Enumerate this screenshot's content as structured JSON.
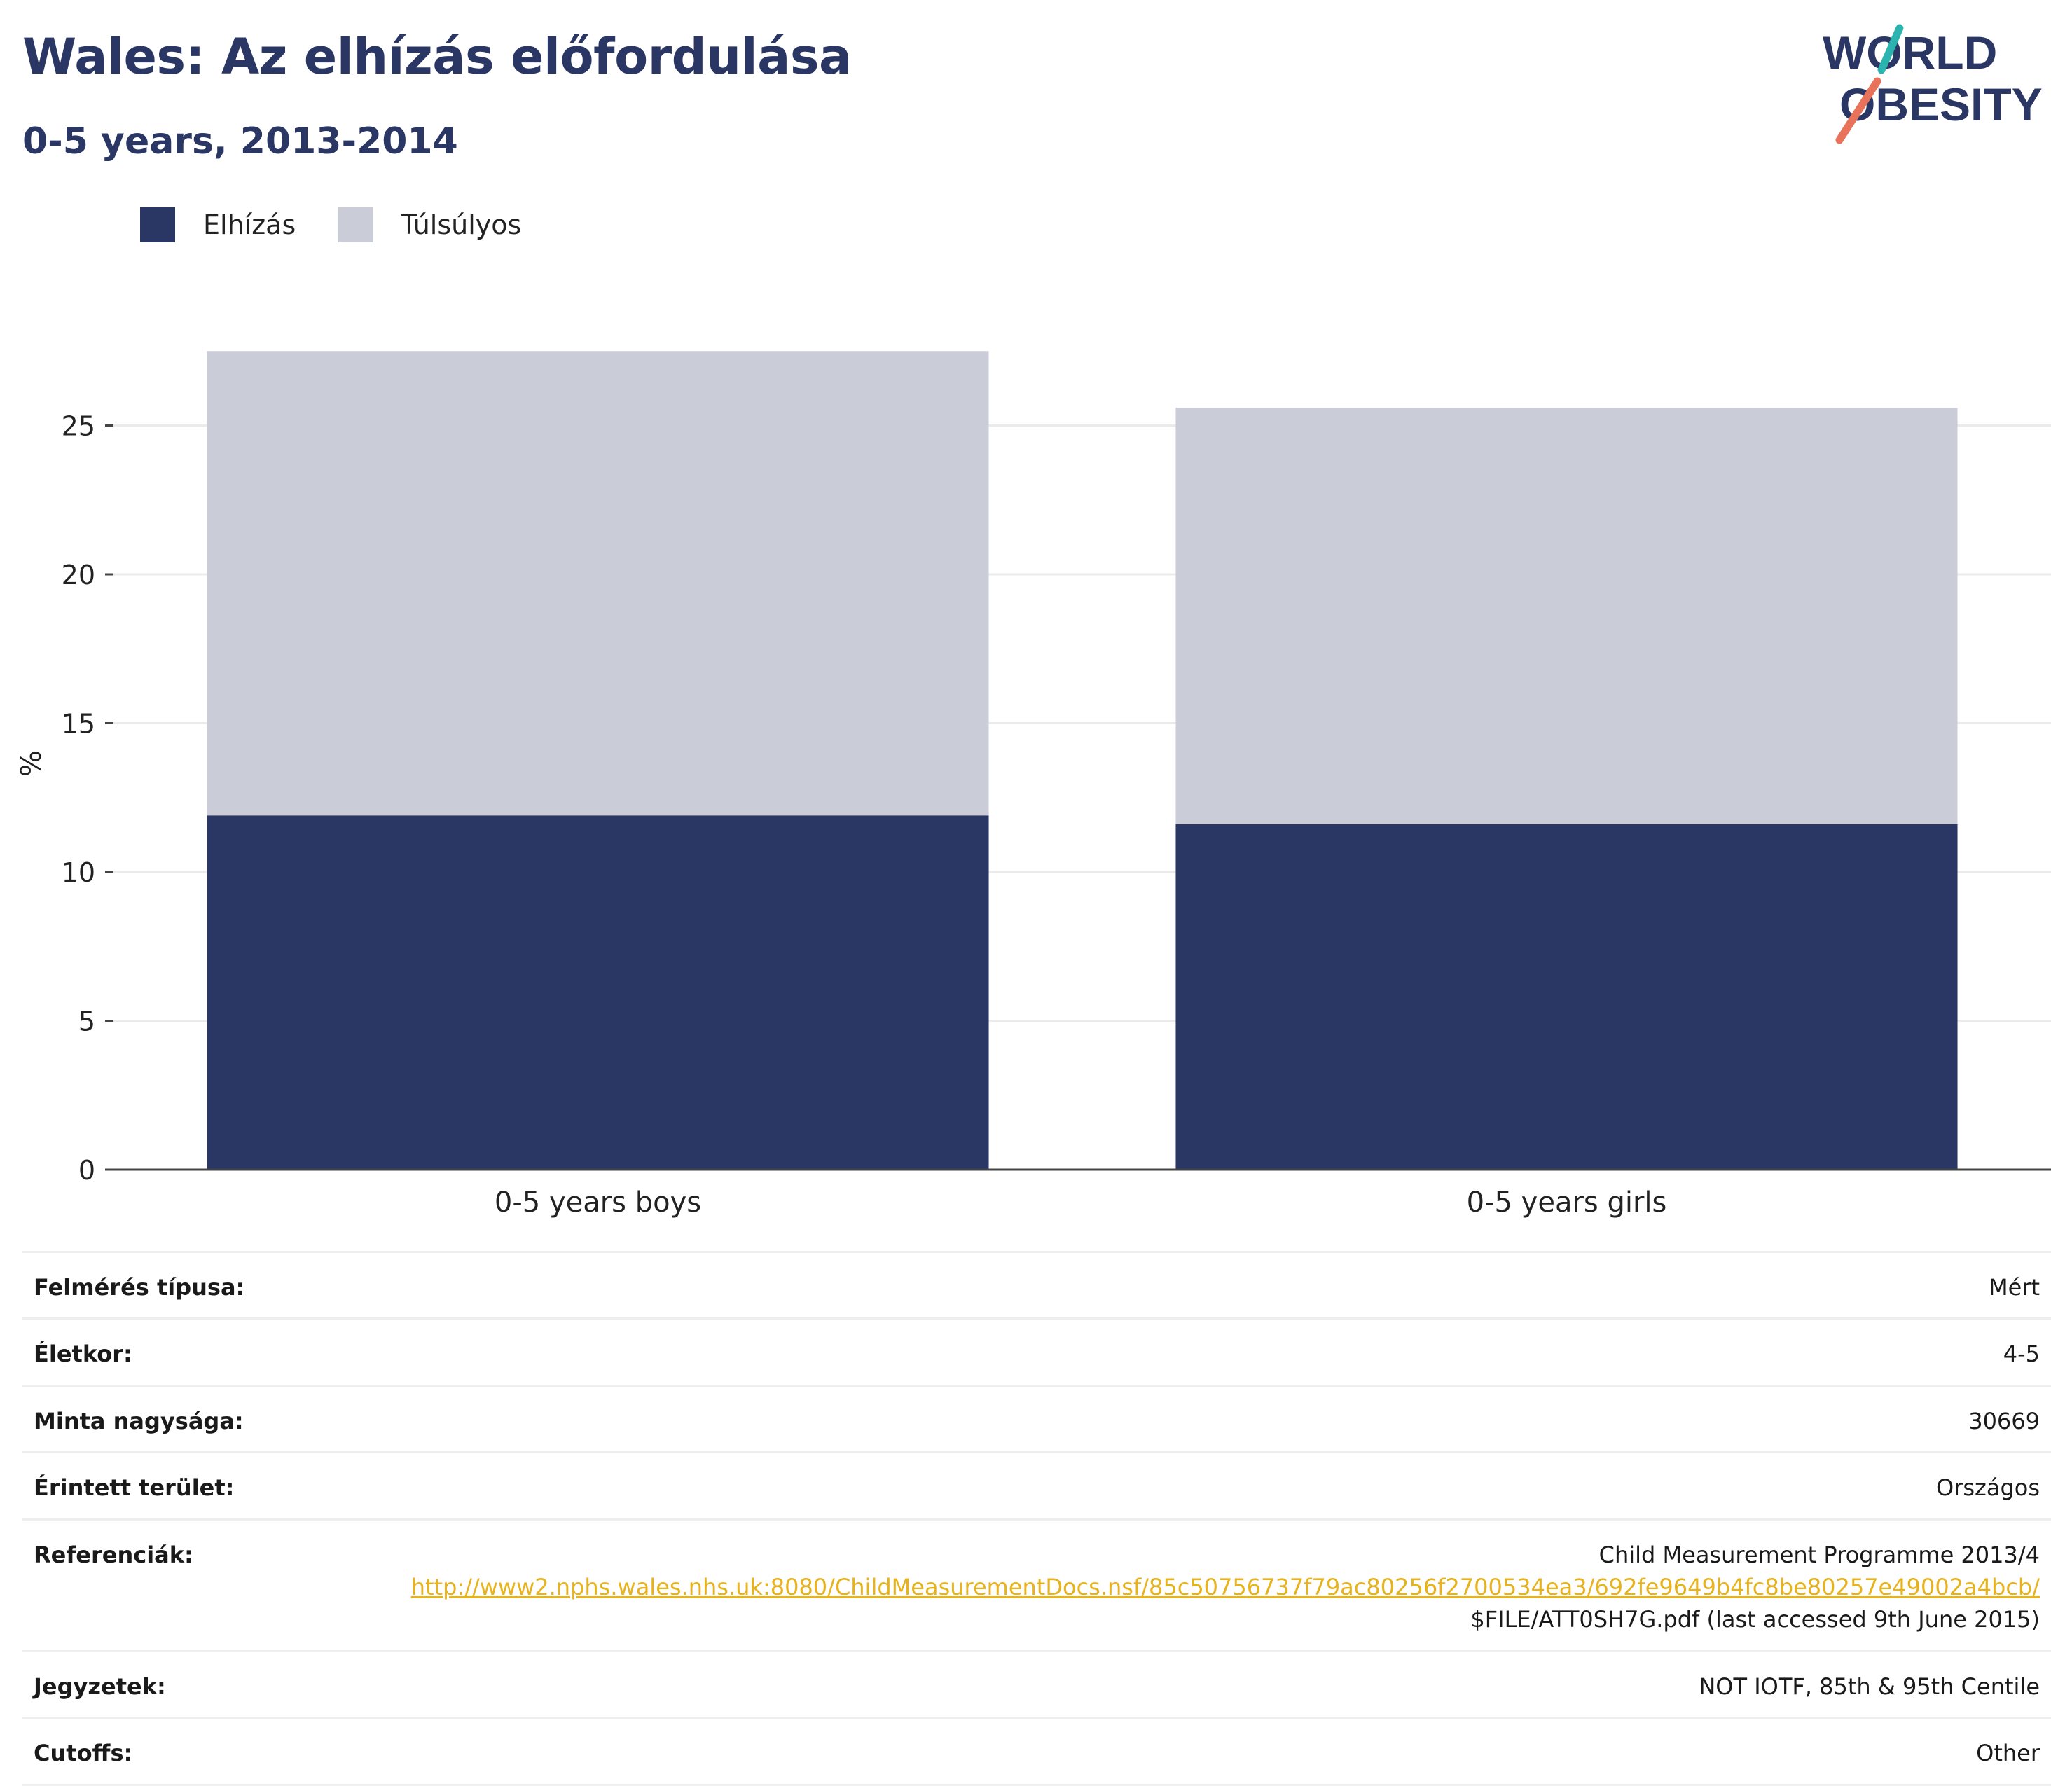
{
  "title": "Wales: Az elhízás előfordulása",
  "subtitle": "0-5 years, 2013-2014",
  "logo": {
    "line1": "WORLD",
    "line2": "OBESITY"
  },
  "colors": {
    "obesity": "#2a3663",
    "overweight": "#cacdd8",
    "title": "#2a3663",
    "link": "#e8b21b",
    "logo_teal": "#2bb3b0",
    "logo_coral": "#e8735a"
  },
  "chart_data": {
    "type": "bar",
    "stacked": true,
    "categories": [
      "0-5 years boys",
      "0-5 years girls"
    ],
    "series": [
      {
        "name": "Elhízás",
        "values": [
          11.9,
          11.6
        ],
        "color": "#2a3663"
      },
      {
        "name": "Túlsúlyos",
        "values": [
          15.6,
          14.0
        ],
        "color": "#cacdd8"
      }
    ],
    "ylabel": "%",
    "xlabel": "",
    "ylim": [
      0,
      28
    ],
    "yticks": [
      0,
      5,
      10,
      15,
      20,
      25
    ],
    "grid": true,
    "legend_position": "top-left"
  },
  "info": {
    "survey_type": {
      "label": "Felmérés típusa:",
      "value": "Mért"
    },
    "age": {
      "label": "Életkor:",
      "value": "4-5"
    },
    "sample_size": {
      "label": "Minta nagysága:",
      "value": "30669"
    },
    "area": {
      "label": "Érintett terület:",
      "value": "Országos"
    },
    "references": {
      "label": "Referenciák:",
      "line1": "Child Measurement Programme 2013/4",
      "link": "http://www2.nphs.wales.nhs.uk:8080/ChildMeasurementDocs.nsf/85c50756737f79ac80256f2700534ea3/692fe9649b4fc8be80257e49002a4bcb/",
      "suffix": "$FILE/ATT0SH7G.pdf (last accessed 9th June 2015)"
    },
    "notes": {
      "label": "Jegyzetek:",
      "value": "NOT IOTF, 85th & 95th Centile"
    },
    "cutoffs": {
      "label": "Cutoffs:",
      "value": "Other"
    }
  }
}
